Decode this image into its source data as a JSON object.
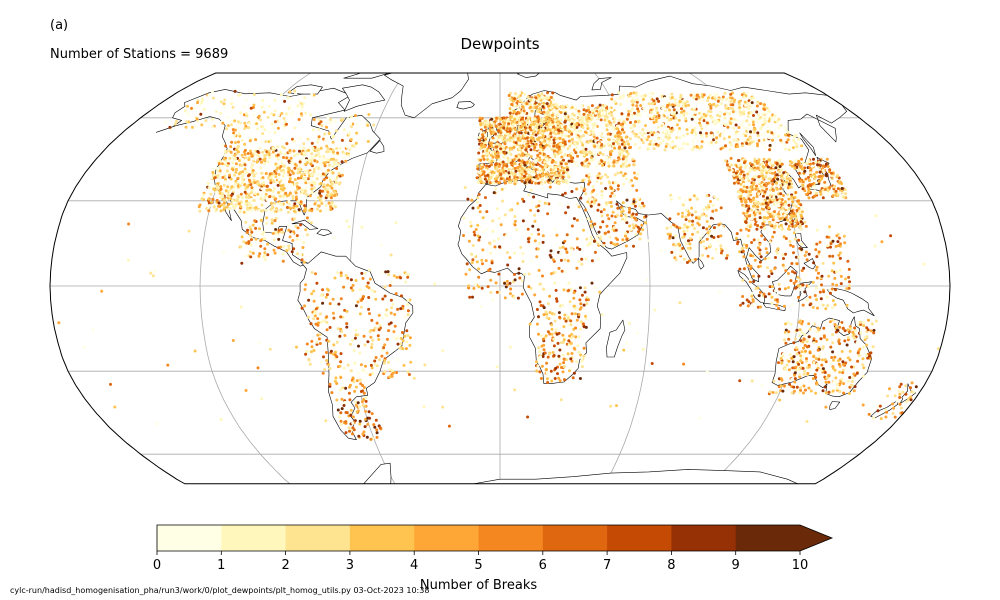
{
  "panel_label": "(a)",
  "station_count_text": "Number of Stations = 9689",
  "title": "Dewpoints",
  "colorbar": {
    "label": "Number of Breaks",
    "ticks": [
      "0",
      "1",
      "2",
      "3",
      "4",
      "5",
      "6",
      "7",
      "8",
      "9",
      "10"
    ],
    "colors": [
      "#ffffe5",
      "#fff7bc",
      "#fee391",
      "#fec44f",
      "#fea737",
      "#f4871f",
      "#df6710",
      "#c54a04",
      "#963105",
      "#6a2a09"
    ],
    "extend": "max"
  },
  "footer": "cylc-run/hadisd_homogenisation_pha/run3/work/0/plot_dewpoints/plt_homog_utils.py   03-Oct-2023 10:38",
  "map": {
    "projection": "Robinson",
    "gridlines": true,
    "meridians_deg": [
      -120,
      -60,
      0,
      60,
      120
    ],
    "parallels_deg": [
      -60,
      -30,
      0,
      30,
      60
    ]
  }
}
